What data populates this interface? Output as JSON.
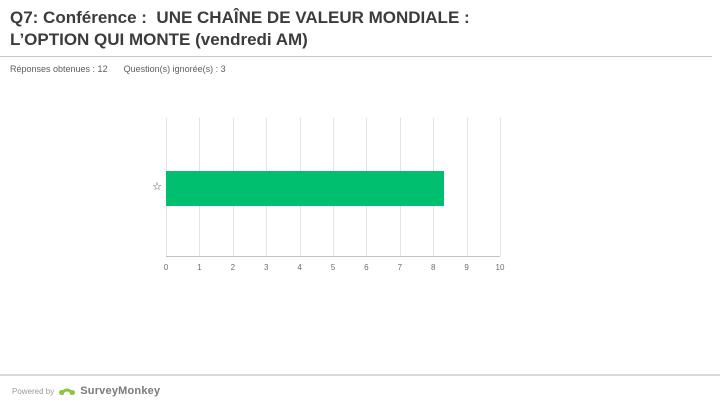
{
  "header": {
    "title_line1": "Q7: Conférence :  UNE CHAÎNE DE VALEUR MONDIALE :",
    "title_line2": "L’OPTION QUI MONTE (vendredi AM)",
    "answered_label": "Réponses obtenues : 12",
    "skipped_label": "Question(s) ignorée(s) : 3"
  },
  "chart_data": {
    "type": "bar",
    "orientation": "horizontal",
    "title": "",
    "xlabel": "",
    "ylabel": "",
    "categories": [
      "star-rating"
    ],
    "category_icons": [
      "☆"
    ],
    "values": [
      8.33
    ],
    "xlim": [
      0,
      10
    ],
    "x_ticks": [
      0,
      1,
      2,
      3,
      4,
      5,
      6,
      7,
      8,
      9,
      10
    ],
    "bar_color": "#00bf6f",
    "grid": true,
    "legend": false
  },
  "footer": {
    "powered_by": "Powered by",
    "brand": "SurveyMonkey"
  },
  "colors": {
    "accent_green": "#00bf6f",
    "logo_green": "#8dc63f",
    "title_text": "#3c3c3c",
    "muted_text": "#5c5c5c"
  }
}
